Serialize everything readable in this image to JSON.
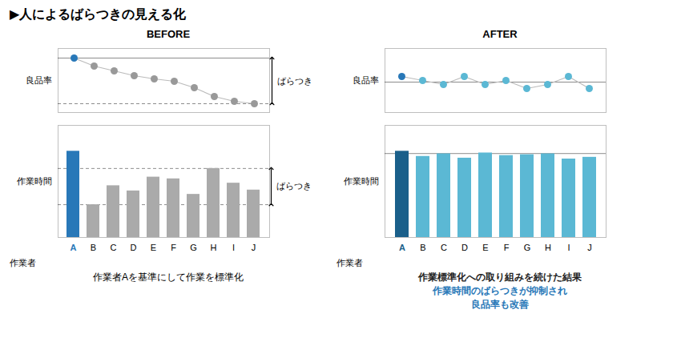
{
  "title": "▶人によるばらつきの見える化",
  "annotations": [
    {
      "text": "作業者Aを基準にして作業を標準化"
    },
    {
      "text": "作業標準化への取り組みを続けた結果",
      "color": "#222222"
    },
    {
      "text": "作業時間のばらつきが抑制され",
      "color": "#2878b8"
    },
    {
      "text": "良品率も改善",
      "color": "#2878b8"
    }
  ],
  "chart_data": [
    {
      "type": "line",
      "title": "BEFORE",
      "ylabel": "良品率",
      "categories": [
        "A",
        "B",
        "C",
        "D",
        "E",
        "F",
        "G",
        "H",
        "I",
        "J"
      ],
      "values": [
        1.0,
        0.9,
        0.84,
        0.78,
        0.74,
        0.71,
        0.63,
        0.52,
        0.46,
        0.43
      ],
      "ylim": [
        0.32,
        1.12
      ],
      "tick_labels": false,
      "marker": "circle",
      "color": "#bbbbbb",
      "colors": [
        "#2878b8",
        "#999999",
        "#999999",
        "#999999",
        "#999999",
        "#999999",
        "#999999",
        "#999999",
        "#999999",
        "#999999"
      ],
      "reference_lines": [
        {
          "value": 1.0,
          "line_style": "solid"
        },
        {
          "value": 0.43,
          "line_style": "dashed"
        }
      ],
      "range_annotation": {
        "text": "ばらつき",
        "from": 0.43,
        "to": 1.0
      }
    },
    {
      "type": "bar",
      "ylabel": "作業時間",
      "xlabel": "作業者",
      "categories": [
        "A",
        "B",
        "C",
        "D",
        "E",
        "F",
        "G",
        "H",
        "I",
        "J"
      ],
      "values": [
        1.0,
        0.38,
        0.6,
        0.54,
        0.7,
        0.68,
        0.5,
        0.8,
        0.63,
        0.55
      ],
      "ylim": [
        0,
        1.3
      ],
      "tick_labels": "x",
      "colors": [
        "#2878b8",
        "#aaaaaa",
        "#aaaaaa",
        "#aaaaaa",
        "#aaaaaa",
        "#aaaaaa",
        "#aaaaaa",
        "#aaaaaa",
        "#aaaaaa",
        "#aaaaaa"
      ],
      "reference_lines": [
        {
          "value": 0.38,
          "line_style": "dashed"
        },
        {
          "value": 0.8,
          "line_style": "dashed"
        }
      ],
      "range_annotation": {
        "text": "ばらつき",
        "from": 0.38,
        "to": 0.8
      }
    },
    {
      "type": "line",
      "title": "AFTER",
      "ylabel": "良品率",
      "categories": [
        "A",
        "B",
        "C",
        "D",
        "E",
        "F",
        "G",
        "H",
        "I",
        "J"
      ],
      "values": [
        0.97,
        0.96,
        0.95,
        0.97,
        0.95,
        0.96,
        0.94,
        0.95,
        0.97,
        0.94
      ],
      "ylim": [
        0.88,
        1.04
      ],
      "tick_labels": false,
      "marker": "circle",
      "color": "#bbbbbb",
      "colors": [
        "#2878b8",
        "#5bb8d4",
        "#5bb8d4",
        "#5bb8d4",
        "#5bb8d4",
        "#5bb8d4",
        "#5bb8d4",
        "#5bb8d4",
        "#5bb8d4",
        "#5bb8d4"
      ],
      "reference_lines": [
        {
          "value": 0.956,
          "line_style": "solid"
        }
      ]
    },
    {
      "type": "bar",
      "ylabel": "作業時間",
      "xlabel": "作業者",
      "categories": [
        "A",
        "B",
        "C",
        "D",
        "E",
        "F",
        "G",
        "H",
        "I",
        "J"
      ],
      "values": [
        1.0,
        0.94,
        0.97,
        0.92,
        0.98,
        0.95,
        0.96,
        0.97,
        0.91,
        0.93
      ],
      "ylim": [
        0,
        1.3
      ],
      "tick_labels": "x",
      "colors": [
        "#1a5f8a",
        "#5bb8d4",
        "#5bb8d4",
        "#5bb8d4",
        "#5bb8d4",
        "#5bb8d4",
        "#5bb8d4",
        "#5bb8d4",
        "#5bb8d4",
        "#5bb8d4"
      ],
      "reference_lines": [
        {
          "value": 0.973,
          "line_style": "solid"
        }
      ]
    }
  ]
}
